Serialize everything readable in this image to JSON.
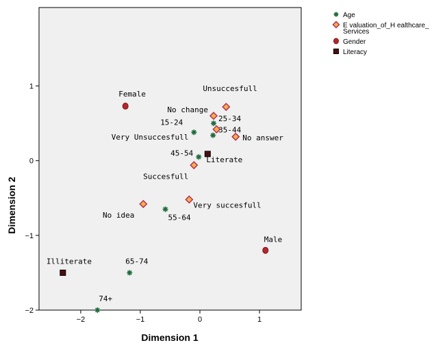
{
  "chart_data": {
    "type": "scatter",
    "xlabel": "Dimension 1",
    "ylabel": "Dimension 2",
    "xlim": [
      -2.7,
      1.7
    ],
    "ylim": [
      -2.0,
      2.05
    ],
    "x_ticks": [
      -2,
      -1,
      0,
      1
    ],
    "y_ticks": [
      -2,
      -1,
      0,
      1
    ],
    "grid": false,
    "legend_position": "top-right",
    "series": [
      {
        "name": "Age",
        "marker": "asterisk",
        "color": "#1f6b3a",
        "points": [
          {
            "label": "15-24",
            "x": -0.1,
            "y": 0.38
          },
          {
            "label": "25-34",
            "x": 0.23,
            "y": 0.5
          },
          {
            "label": "35-44",
            "x": 0.22,
            "y": 0.34
          },
          {
            "label": "45-54",
            "x": -0.02,
            "y": 0.05
          },
          {
            "label": "55-64",
            "x": -0.58,
            "y": -0.65
          },
          {
            "label": "65-74",
            "x": -1.18,
            "y": -1.5
          },
          {
            "label": "74+",
            "x": -1.72,
            "y": -2.0
          }
        ]
      },
      {
        "name": "Evaluation_of_Healthcare_Services",
        "marker": "diamond",
        "color": "#f5b041",
        "edge": "#b03060",
        "points": [
          {
            "label": "Unsuccesfull",
            "x": 0.44,
            "y": 0.72
          },
          {
            "label": "No change",
            "x": 0.23,
            "y": 0.6
          },
          {
            "label": "Very Unsuccesfull",
            "x": 0.28,
            "y": 0.42
          },
          {
            "label": "No answer",
            "x": 0.6,
            "y": 0.32
          },
          {
            "label": "Succesfull",
            "x": -0.1,
            "y": -0.06
          },
          {
            "label": "Very succesfull",
            "x": -0.18,
            "y": -0.52
          },
          {
            "label": "No idea",
            "x": -0.95,
            "y": -0.58
          }
        ]
      },
      {
        "name": "Gender",
        "marker": "circle",
        "color": "#b3282d",
        "points": [
          {
            "label": "Female",
            "x": -1.25,
            "y": 0.73
          },
          {
            "label": "Male",
            "x": 1.1,
            "y": -1.2
          }
        ]
      },
      {
        "name": "Literacy",
        "marker": "square",
        "color": "#4a0f0f",
        "points": [
          {
            "label": "Literate",
            "x": 0.13,
            "y": 0.09
          },
          {
            "label": "Illiterate",
            "x": -2.3,
            "y": -1.5
          }
        ]
      }
    ],
    "legend_lines": {
      "Age": [
        "Age"
      ],
      "Evaluation_of_Healthcare_Services": [
        "E valuation_of_H ealthcare_",
        "Services"
      ],
      "Gender": [
        "Gender"
      ],
      "Literacy": [
        "Literacy"
      ]
    }
  }
}
